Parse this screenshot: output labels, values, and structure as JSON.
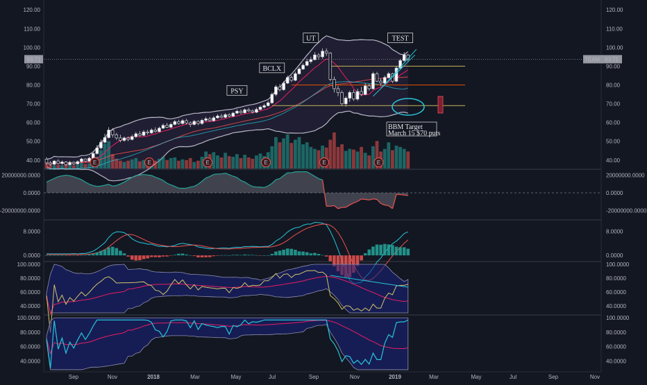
{
  "chart_data": {
    "type": "candlestick",
    "price_axis": {
      "ticks": [
        "120.00",
        "110.00",
        "100.00",
        "90.00",
        "80.00",
        "70.00",
        "60.00",
        "50.00",
        "40.00"
      ],
      "ticks_num": [
        120,
        110,
        100,
        90,
        80,
        70,
        60,
        50,
        40
      ],
      "range": [
        35.5,
        124.5
      ]
    },
    "last_price": {
      "value": 93.71,
      "label": "93.71",
      "symbol": "TEAM"
    },
    "horizontal_levels": [
      90,
      80,
      69
    ],
    "date_axis": [
      "Sep",
      "Nov",
      "2018",
      "Mar",
      "May",
      "Jul",
      "Sep",
      "Nov",
      "2019",
      "Mar",
      "May",
      "Jul",
      "Sep",
      "Nov"
    ],
    "candles": [
      [
        40.5,
        38.5,
        41.5,
        37.5
      ],
      [
        38.5,
        37.8,
        39.5,
        37
      ],
      [
        37.8,
        39.5,
        40,
        37.2
      ],
      [
        39.5,
        38.2,
        40.5,
        37.8
      ],
      [
        38.2,
        39,
        39.8,
        37.5
      ],
      [
        39,
        37.6,
        39.5,
        37
      ],
      [
        37.6,
        38.8,
        39.6,
        37.2
      ],
      [
        38.8,
        38,
        39.4,
        37.4
      ],
      [
        38,
        39.2,
        39.8,
        37.6
      ],
      [
        39.2,
        40.6,
        41.2,
        38.6
      ],
      [
        40.6,
        39.5,
        41,
        39
      ],
      [
        39.5,
        41,
        41.8,
        39
      ],
      [
        41,
        43.5,
        44.5,
        40.5
      ],
      [
        43.5,
        46.5,
        48,
        43
      ],
      [
        46.5,
        49.5,
        51,
        45.8
      ],
      [
        49.5,
        52,
        54,
        49
      ],
      [
        52,
        56,
        57.5,
        51.5
      ],
      [
        56,
        53.5,
        57,
        52
      ],
      [
        53.5,
        51.8,
        54.5,
        50.8
      ],
      [
        51.8,
        50.5,
        53.5,
        49.5
      ],
      [
        50.5,
        51.8,
        52.6,
        49.8
      ],
      [
        51.8,
        51,
        52.6,
        50
      ],
      [
        51,
        52.5,
        53.5,
        50.5
      ],
      [
        52.5,
        54,
        55,
        51.8
      ],
      [
        54,
        53.2,
        55.5,
        52.5
      ],
      [
        53.2,
        55,
        56,
        52.8
      ],
      [
        55,
        54.5,
        56.2,
        53.5
      ],
      [
        54.5,
        56,
        57,
        54
      ],
      [
        56,
        55.2,
        57.5,
        54.5
      ],
      [
        55.2,
        57,
        57.8,
        54.8
      ],
      [
        57,
        58.5,
        59.5,
        56.5
      ],
      [
        58.5,
        57.5,
        59.8,
        57
      ],
      [
        57.5,
        59,
        60,
        57
      ],
      [
        59,
        60.5,
        61.5,
        58.5
      ],
      [
        60.5,
        59.5,
        61.5,
        58.8
      ],
      [
        59.5,
        61,
        61.8,
        59
      ],
      [
        61,
        59.8,
        62,
        59
      ],
      [
        59.8,
        59,
        60.6,
        57.6
      ],
      [
        59,
        60.6,
        61.4,
        58.4
      ],
      [
        60.6,
        59.5,
        61.2,
        58.6
      ],
      [
        59.5,
        61.2,
        62,
        58.8
      ],
      [
        61.2,
        62,
        63,
        60.5
      ],
      [
        62,
        61,
        63,
        60.5
      ],
      [
        61,
        62.5,
        63.5,
        60.5
      ],
      [
        62.5,
        63.5,
        64.5,
        62
      ],
      [
        63.5,
        62.8,
        64.6,
        62.2
      ],
      [
        62.8,
        64.2,
        65,
        62.3
      ],
      [
        64.2,
        63.4,
        65,
        62.8
      ],
      [
        63.4,
        65,
        65.8,
        63
      ],
      [
        65,
        66,
        67,
        64.5
      ],
      [
        66,
        65.2,
        67,
        64.5
      ],
      [
        65.2,
        66.8,
        67.5,
        64.8
      ],
      [
        66.8,
        66.2,
        67.8,
        65.5
      ],
      [
        66.2,
        65.5,
        67,
        64.8
      ],
      [
        65.5,
        67,
        68,
        65
      ],
      [
        67,
        68.2,
        69,
        66.5
      ],
      [
        68.2,
        69,
        70,
        67.5
      ],
      [
        69,
        70.5,
        71.5,
        68.5
      ],
      [
        70.5,
        75,
        76,
        70
      ],
      [
        75,
        79,
        80,
        74
      ],
      [
        79,
        77.5,
        80.5,
        76.5
      ],
      [
        77.5,
        81,
        82,
        77
      ],
      [
        81,
        84,
        85,
        80.5
      ],
      [
        84,
        82.5,
        85,
        81.5
      ],
      [
        82.5,
        86,
        87,
        82
      ],
      [
        86,
        88.5,
        89.5,
        85.5
      ],
      [
        88.5,
        90.5,
        91.5,
        88
      ],
      [
        90.5,
        92.5,
        94,
        90
      ],
      [
        92.5,
        93.5,
        95,
        91.5
      ],
      [
        93.5,
        96,
        97.5,
        93
      ],
      [
        96,
        95,
        97,
        93.5
      ],
      [
        95,
        98,
        99.5,
        94
      ],
      [
        98,
        97,
        99.5,
        95.5
      ],
      [
        97,
        83,
        97.5,
        82
      ],
      [
        83,
        78,
        84.5,
        76
      ],
      [
        78,
        76,
        79.5,
        74
      ],
      [
        76,
        70,
        77,
        69
      ],
      [
        70,
        73,
        74,
        68.5
      ],
      [
        73,
        76,
        77,
        71
      ],
      [
        76,
        72.5,
        77.5,
        71.5
      ],
      [
        72.5,
        76.5,
        78,
        71.5
      ],
      [
        76.5,
        75,
        79,
        74
      ],
      [
        75,
        79.5,
        81,
        74.5
      ],
      [
        79.5,
        78,
        80.5,
        77
      ],
      [
        78,
        86,
        87,
        77.5
      ],
      [
        86,
        82,
        87,
        81.5
      ],
      [
        82,
        81,
        83.5,
        79.5
      ],
      [
        81,
        84,
        85,
        80
      ],
      [
        84,
        86,
        87,
        83.5
      ],
      [
        86,
        82,
        86.5,
        81
      ],
      [
        82,
        89,
        90,
        81.5
      ],
      [
        89,
        93,
        94,
        88
      ],
      [
        93,
        96,
        97.5,
        92.5
      ],
      [
        96,
        93.71,
        96.5,
        92.5
      ]
    ],
    "volume_max": 55,
    "volume": [
      8,
      6,
      5,
      6,
      5,
      7,
      6,
      5,
      6,
      9,
      7,
      8,
      12,
      18,
      28,
      38,
      42,
      22,
      15,
      12,
      10,
      12,
      14,
      16,
      11,
      13,
      10,
      14,
      12,
      15,
      18,
      13,
      16,
      17,
      12,
      14,
      13,
      16,
      10,
      12,
      18,
      26,
      22,
      25,
      20,
      17,
      24,
      19,
      18,
      22,
      16,
      21,
      17,
      15,
      20,
      23,
      19,
      25,
      34,
      48,
      40,
      46,
      52,
      39,
      44,
      48,
      37,
      40,
      33,
      30,
      28,
      35,
      32,
      44,
      55,
      33,
      37,
      27,
      30,
      29,
      26,
      33,
      24,
      20,
      34,
      42,
      26,
      30,
      40,
      28,
      35,
      33,
      30,
      26
    ],
    "earnings_markers": [
      "E",
      "E",
      "E",
      "E",
      "E",
      "E"
    ],
    "earnings_index": [
      11,
      25,
      40,
      55,
      70,
      84
    ],
    "pane2": {
      "ticks": [
        "20000000.0000",
        "0.0000",
        "-20000000.0000"
      ],
      "ticks_num": [
        20000000,
        0,
        -20000000
      ],
      "range": [
        -30000000,
        26000000
      ]
    },
    "pane3": {
      "ticks": [
        "8.0000",
        "0.0000"
      ],
      "ticks_num": [
        8,
        0
      ],
      "range": [
        -1.8,
        11.5
      ]
    },
    "pane4": {
      "ticks": [
        "100.0000",
        "80.0000",
        "60.0000",
        "40.0000"
      ],
      "ticks_num": [
        100,
        80,
        60,
        40
      ],
      "range": [
        28,
        103
      ]
    },
    "pane5": {
      "ticks": [
        "100.0000",
        "80.0000",
        "60.0000",
        "40.0000"
      ],
      "ticks_num": [
        100,
        80,
        60,
        40
      ],
      "range": [
        26,
        103
      ]
    },
    "annotations": [
      {
        "text": "PSY",
        "index": 49,
        "price": 76
      },
      {
        "text": "BCLX",
        "index": 58,
        "price": 88
      },
      {
        "text": "UT",
        "index": 68,
        "price": 104
      },
      {
        "text": "TEST",
        "index": 91,
        "price": 104
      }
    ],
    "bbm_note": {
      "line1": "BBM Target",
      "line2": "March 15 $70 puts"
    }
  }
}
